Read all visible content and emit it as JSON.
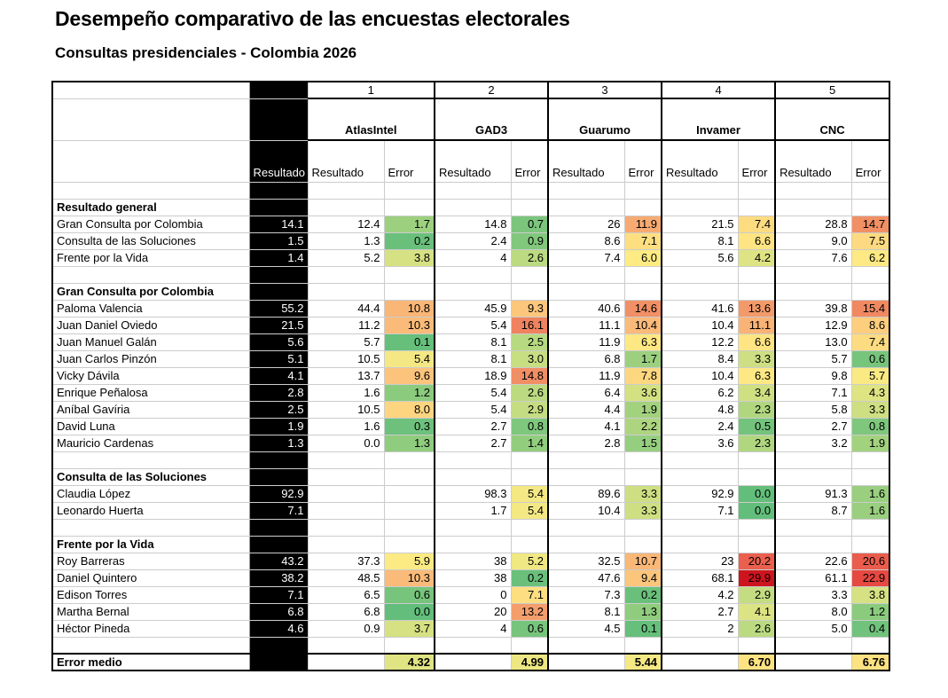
{
  "title": "Desempeño comparativo de las encuestas electorales",
  "subtitle": "Consultas presidenciales - Colombia 2026",
  "polls": [
    {
      "num": "1",
      "name": "AtlasIntel"
    },
    {
      "num": "2",
      "name": "GAD3"
    },
    {
      "num": "3",
      "name": "Guarumo"
    },
    {
      "num": "4",
      "name": "Invamer"
    },
    {
      "num": "5",
      "name": "CNC"
    }
  ],
  "col_resultado": "Resultado",
  "col_error": "Error",
  "sections": [
    {
      "title": "Resultado general",
      "rows": [
        {
          "name": "Gran Consulta por Colombia",
          "res": "14.1",
          "polls": [
            [
              "12.4",
              "1.7"
            ],
            [
              "14.8",
              "0.7"
            ],
            [
              "26",
              "11.9"
            ],
            [
              "21.5",
              "7.4"
            ],
            [
              "28.8",
              "14.7"
            ]
          ]
        },
        {
          "name": "Consulta de las Soluciones",
          "res": "1.5",
          "polls": [
            [
              "1.3",
              "0.2"
            ],
            [
              "2.4",
              "0.9"
            ],
            [
              "8.6",
              "7.1"
            ],
            [
              "8.1",
              "6.6"
            ],
            [
              "9.0",
              "7.5"
            ]
          ]
        },
        {
          "name": "Frente por la Vida",
          "res": "1.4",
          "polls": [
            [
              "5.2",
              "3.8"
            ],
            [
              "4",
              "2.6"
            ],
            [
              "7.4",
              "6.0"
            ],
            [
              "5.6",
              "4.2"
            ],
            [
              "7.6",
              "6.2"
            ]
          ]
        }
      ]
    },
    {
      "title": "Gran Consulta por Colombia",
      "rows": [
        {
          "name": "Paloma Valencia",
          "res": "55.2",
          "polls": [
            [
              "44.4",
              "10.8"
            ],
            [
              "45.9",
              "9.3"
            ],
            [
              "40.6",
              "14.6"
            ],
            [
              "41.6",
              "13.6"
            ],
            [
              "39.8",
              "15.4"
            ]
          ]
        },
        {
          "name": "Juan Daniel Oviedo",
          "res": "21.5",
          "polls": [
            [
              "11.2",
              "10.3"
            ],
            [
              "5.4",
              "16.1"
            ],
            [
              "11.1",
              "10.4"
            ],
            [
              "10.4",
              "11.1"
            ],
            [
              "12.9",
              "8.6"
            ]
          ]
        },
        {
          "name": "Juan Manuel Galán",
          "res": "5.6",
          "polls": [
            [
              "5.7",
              "0.1"
            ],
            [
              "8.1",
              "2.5"
            ],
            [
              "11.9",
              "6.3"
            ],
            [
              "12.2",
              "6.6"
            ],
            [
              "13.0",
              "7.4"
            ]
          ]
        },
        {
          "name": "Juan Carlos Pinzón",
          "res": "5.1",
          "polls": [
            [
              "10.5",
              "5.4"
            ],
            [
              "8.1",
              "3.0"
            ],
            [
              "6.8",
              "1.7"
            ],
            [
              "8.4",
              "3.3"
            ],
            [
              "5.7",
              "0.6"
            ]
          ]
        },
        {
          "name": "Vicky Dávila",
          "res": "4.1",
          "polls": [
            [
              "13.7",
              "9.6"
            ],
            [
              "18.9",
              "14.8"
            ],
            [
              "11.9",
              "7.8"
            ],
            [
              "10.4",
              "6.3"
            ],
            [
              "9.8",
              "5.7"
            ]
          ]
        },
        {
          "name": "Enrique Peñalosa",
          "res": "2.8",
          "polls": [
            [
              "1.6",
              "1.2"
            ],
            [
              "5.4",
              "2.6"
            ],
            [
              "6.4",
              "3.6"
            ],
            [
              "6.2",
              "3.4"
            ],
            [
              "7.1",
              "4.3"
            ]
          ]
        },
        {
          "name": "Aníbal Gavíria",
          "res": "2.5",
          "polls": [
            [
              "10.5",
              "8.0"
            ],
            [
              "5.4",
              "2.9"
            ],
            [
              "4.4",
              "1.9"
            ],
            [
              "4.8",
              "2.3"
            ],
            [
              "5.8",
              "3.3"
            ]
          ]
        },
        {
          "name": "David Luna",
          "res": "1.9",
          "polls": [
            [
              "1.6",
              "0.3"
            ],
            [
              "2.7",
              "0.8"
            ],
            [
              "4.1",
              "2.2"
            ],
            [
              "2.4",
              "0.5"
            ],
            [
              "2.7",
              "0.8"
            ]
          ]
        },
        {
          "name": "Mauricio Cardenas",
          "res": "1.3",
          "polls": [
            [
              "0.0",
              "1.3"
            ],
            [
              "2.7",
              "1.4"
            ],
            [
              "2.8",
              "1.5"
            ],
            [
              "3.6",
              "2.3"
            ],
            [
              "3.2",
              "1.9"
            ]
          ]
        }
      ]
    },
    {
      "title": "Consulta de las Soluciones",
      "rows": [
        {
          "name": "Claudia López",
          "res": "92.9",
          "polls": [
            [
              "",
              ""
            ],
            [
              "98.3",
              "5.4"
            ],
            [
              "89.6",
              "3.3"
            ],
            [
              "92.9",
              "0.0"
            ],
            [
              "91.3",
              "1.6"
            ]
          ]
        },
        {
          "name": "Leonardo Huerta",
          "res": "7.1",
          "polls": [
            [
              "",
              ""
            ],
            [
              "1.7",
              "5.4"
            ],
            [
              "10.4",
              "3.3"
            ],
            [
              "7.1",
              "0.0"
            ],
            [
              "8.7",
              "1.6"
            ]
          ]
        }
      ]
    },
    {
      "title": "Frente por la Vida",
      "rows": [
        {
          "name": "Roy Barreras",
          "res": "43.2",
          "polls": [
            [
              "37.3",
              "5.9"
            ],
            [
              "38",
              "5.2"
            ],
            [
              "32.5",
              "10.7"
            ],
            [
              "23",
              "20.2"
            ],
            [
              "22.6",
              "20.6"
            ]
          ]
        },
        {
          "name": "Daniel Quintero",
          "res": "38.2",
          "polls": [
            [
              "48.5",
              "10.3"
            ],
            [
              "38",
              "0.2"
            ],
            [
              "47.6",
              "9.4"
            ],
            [
              "68.1",
              "29.9"
            ],
            [
              "61.1",
              "22.9"
            ]
          ]
        },
        {
          "name": "Edison Torres",
          "res": "7.1",
          "polls": [
            [
              "6.5",
              "0.6"
            ],
            [
              "0",
              "7.1"
            ],
            [
              "7.3",
              "0.2"
            ],
            [
              "4.2",
              "2.9"
            ],
            [
              "3.3",
              "3.8"
            ]
          ]
        },
        {
          "name": "Martha Bernal",
          "res": "6.8",
          "polls": [
            [
              "6.8",
              "0.0"
            ],
            [
              "20",
              "13.2"
            ],
            [
              "8.1",
              "1.3"
            ],
            [
              "2.7",
              "4.1"
            ],
            [
              "8.0",
              "1.2"
            ]
          ]
        },
        {
          "name": "Héctor Pineda",
          "res": "4.6",
          "polls": [
            [
              "0.9",
              "3.7"
            ],
            [
              "4",
              "0.6"
            ],
            [
              "4.5",
              "0.1"
            ],
            [
              "2",
              "2.6"
            ],
            [
              "5.0",
              "0.4"
            ]
          ]
        }
      ]
    }
  ],
  "footer": {
    "label": "Error medio",
    "values": [
      "4.32",
      "4.99",
      "5.44",
      "6.70",
      "6.76"
    ]
  }
}
